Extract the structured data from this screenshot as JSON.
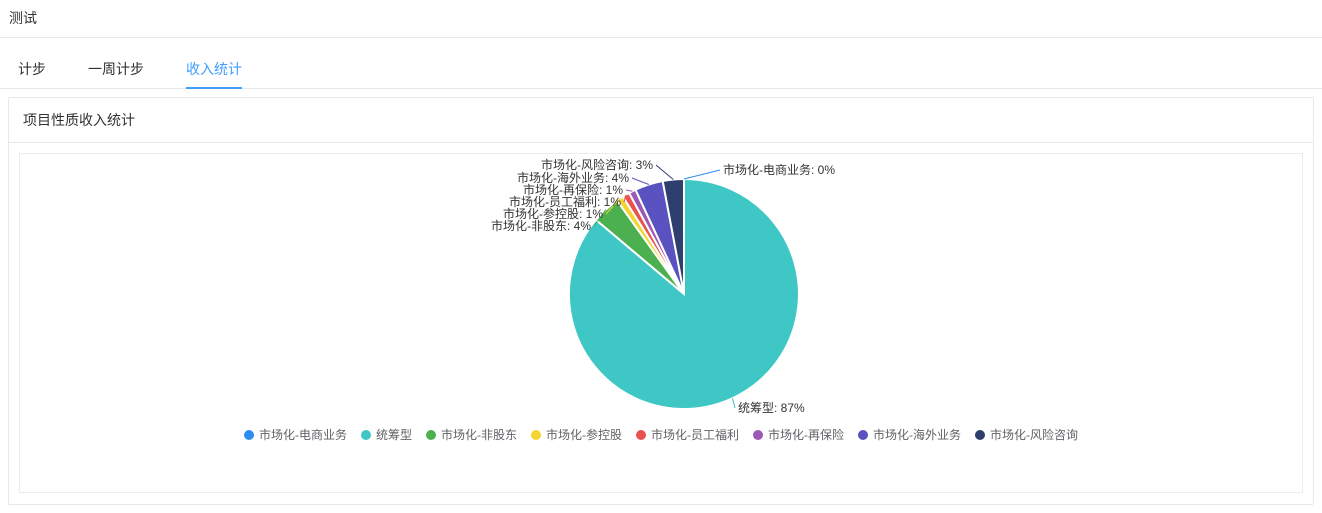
{
  "page": {
    "title": "测试"
  },
  "tabs": [
    {
      "label": "计步",
      "active": false
    },
    {
      "label": "一周计步",
      "active": false
    },
    {
      "label": "收入统计",
      "active": true
    }
  ],
  "card": {
    "title": "项目性质收入统计"
  },
  "theme": {
    "accent": "#409eff",
    "border": "#e8e8e8"
  },
  "chart_data": {
    "type": "pie",
    "title": "项目性质收入统计",
    "unit": "%",
    "categories": [
      "市场化-电商业务",
      "统筹型",
      "市场化-非股东",
      "市场化-参控股",
      "市场化-员工福利",
      "市场化-再保险",
      "市场化-海外业务",
      "市场化-风险咨询"
    ],
    "values": [
      0,
      87,
      4,
      1,
      1,
      1,
      4,
      3
    ],
    "labels": [
      "市场化-电商业务: 0%",
      "统筹型: 87%",
      "市场化-非股东: 4%",
      "市场化-参控股: 1%",
      "市场化-员工福利: 1%",
      "市场化-再保险: 1%",
      "市场化-海外业务: 4%",
      "市场化-风险咨询: 3%"
    ],
    "colors": [
      "#2d8cf0",
      "#3fc7c5",
      "#4cb050",
      "#f3d430",
      "#e85352",
      "#9b59b6",
      "#5a52c0",
      "#2e3f6e"
    ],
    "legend_position": "bottom",
    "start_angle": "top",
    "direction": "clockwise"
  }
}
